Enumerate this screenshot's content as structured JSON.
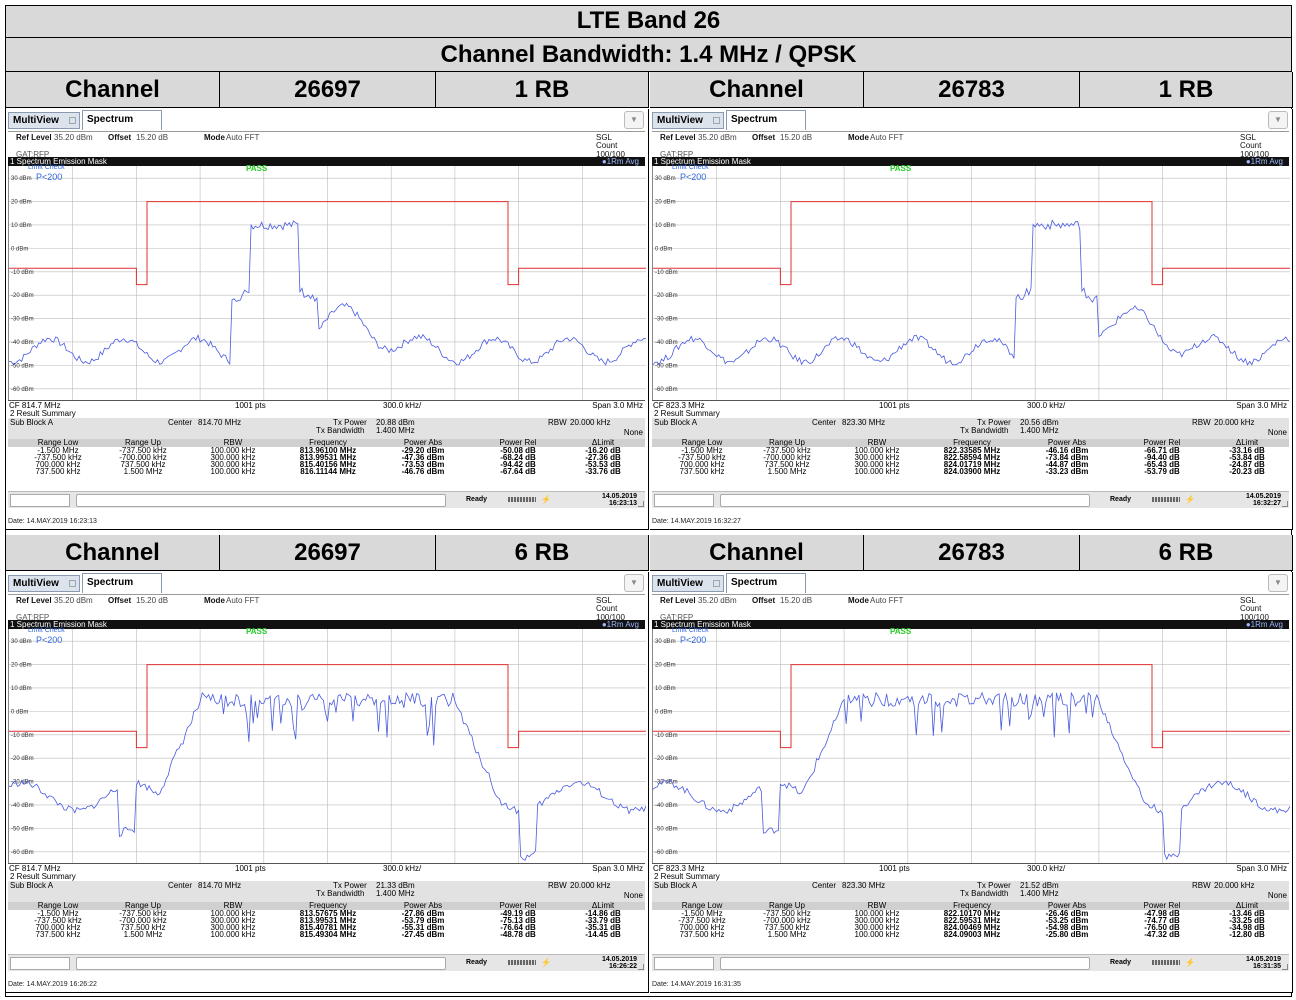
{
  "header": {
    "title": "LTE Band 26",
    "subtitle": "Channel Bandwidth: 1.4 MHz / QPSK"
  },
  "common": {
    "tab_multiview": "MultiView",
    "tab_spectrum": "Spectrum",
    "ref_level_label": "Ref Level",
    "ref_level": "35.20 dBm",
    "offset_label": "Offset",
    "offset": "15.20 dB",
    "mode_label": "Mode",
    "mode": "Auto FFT",
    "sgl": "SGL",
    "count": "Count 100/100",
    "gat": "GAT:RFP",
    "mask_title": "1 Spectrum Emission Mask",
    "trace_mode": "●1Rm Avg",
    "limit_check": "Limit Check",
    "limit_value": "P<200",
    "pass": "PASS",
    "y_ticks": [
      "30 dBm",
      "20 dBm",
      "10 dBm",
      "0 dBm",
      "-10 dBm",
      "-20 dBm",
      "-30 dBm",
      "-40 dBm",
      "-50 dBm",
      "-60 dBm"
    ],
    "pts": "1001 pts",
    "div": "300.0 kHz/",
    "span": "Span 3.0 MHz",
    "result_title": "2 Result Summary",
    "sub_block": "Sub Block A",
    "center_label": "Center",
    "tx_power_label": "Tx Power",
    "tx_bw_label": "Tx Bandwidth",
    "tx_bw": "1.400 MHz",
    "rbw_label": "RBW",
    "rbw": "20.000 kHz",
    "none": "None",
    "col_headers": [
      "Range Low",
      "Range Up",
      "RBW",
      "Frequency",
      "Power Abs",
      "Power Rel",
      "ΔLimit"
    ],
    "range_low": [
      "-1.500 MHz",
      "-737.500 kHz",
      "700.000 kHz",
      "737.500 kHz"
    ],
    "range_up": [
      "-737.500 kHz",
      "-700.000 kHz",
      "737.500 kHz",
      "1.500 MHz"
    ],
    "range_rbw": [
      "100.000 kHz",
      "300.000 kHz",
      "300.000 kHz",
      "100.000 kHz"
    ],
    "ready": "Ready"
  },
  "panels": [
    {
      "channel_label": "Channel",
      "channel": "26697",
      "rb": "1 RB",
      "cf": "CF 814.7 MHz",
      "center": "814.70 MHz",
      "tx_power": "20.88 dBm",
      "freq": [
        "813.96100 MHz",
        "813.99531 MHz",
        "815.40156 MHz",
        "816.11144 MHz"
      ],
      "pabs": [
        "-29.20 dBm",
        "-47.36 dBm",
        "-73.53 dBm",
        "-46.76 dBm"
      ],
      "prel": [
        "-50.08 dB",
        "-68.24 dB",
        "-94.42 dB",
        "-67.64 dB"
      ],
      "dlim": [
        "-16.20 dB",
        "-27.36 dB",
        "-53.53 dB",
        "-33.76 dB"
      ],
      "ts_date": "14.05.2019",
      "ts_time": "16:23:13",
      "date": "Date: 14.MAY.2019 16:23:13"
    },
    {
      "channel_label": "Channel",
      "channel": "26783",
      "rb": "1 RB",
      "cf": "CF 823.3 MHz",
      "center": "823.30 MHz",
      "tx_power": "20.56 dBm",
      "freq": [
        "822.33585 MHz",
        "822.58594 MHz",
        "824.01719 MHz",
        "824.03900 MHz"
      ],
      "pabs": [
        "-46.16 dBm",
        "-73.84 dBm",
        "-44.87 dBm",
        "-33.23 dBm"
      ],
      "prel": [
        "-66.71 dB",
        "-94.40 dB",
        "-65.43 dB",
        "-53.79 dB"
      ],
      "dlim": [
        "-33.16 dB",
        "-53.84 dB",
        "-24.87 dB",
        "-20.23 dB"
      ],
      "ts_date": "14.05.2019",
      "ts_time": "16:32:27",
      "date": "Date: 14.MAY.2019 16:32:27"
    },
    {
      "channel_label": "Channel",
      "channel": "26697",
      "rb": "6 RB",
      "cf": "CF 814.7 MHz",
      "center": "814.70 MHz",
      "tx_power": "21.33 dBm",
      "freq": [
        "813.57675 MHz",
        "813.99531 MHz",
        "815.40781 MHz",
        "815.49304 MHz"
      ],
      "pabs": [
        "-27.86 dBm",
        "-53.79 dBm",
        "-55.31 dBm",
        "-27.45 dBm"
      ],
      "prel": [
        "-49.19 dB",
        "-75.13 dB",
        "-76.64 dB",
        "-48.78 dB"
      ],
      "dlim": [
        "-14.86 dB",
        "-33.79 dB",
        "-35.31 dB",
        "-14.45 dB"
      ],
      "ts_date": "14.05.2019",
      "ts_time": "16:26:22",
      "date": "Date: 14.MAY.2019 16:26:22"
    },
    {
      "channel_label": "Channel",
      "channel": "26783",
      "rb": "6 RB",
      "cf": "CF 823.3 MHz",
      "center": "823.30 MHz",
      "tx_power": "21.52 dBm",
      "freq": [
        "822.10170 MHz",
        "822.59531 MHz",
        "824.00469 MHz",
        "824.09003 MHz"
      ],
      "pabs": [
        "-26.46 dBm",
        "-53.25 dBm",
        "-54.98 dBm",
        "-25.80 dBm"
      ],
      "prel": [
        "-47.98 dB",
        "-74.77 dB",
        "-76.50 dB",
        "-47.32 dB"
      ],
      "dlim": [
        "-13.46 dB",
        "-33.25 dB",
        "-34.98 dB",
        "-12.80 dB"
      ],
      "ts_date": "14.05.2019",
      "ts_time": "16:31:35",
      "date": "Date: 14.MAY.2019 16:31:35"
    }
  ]
}
